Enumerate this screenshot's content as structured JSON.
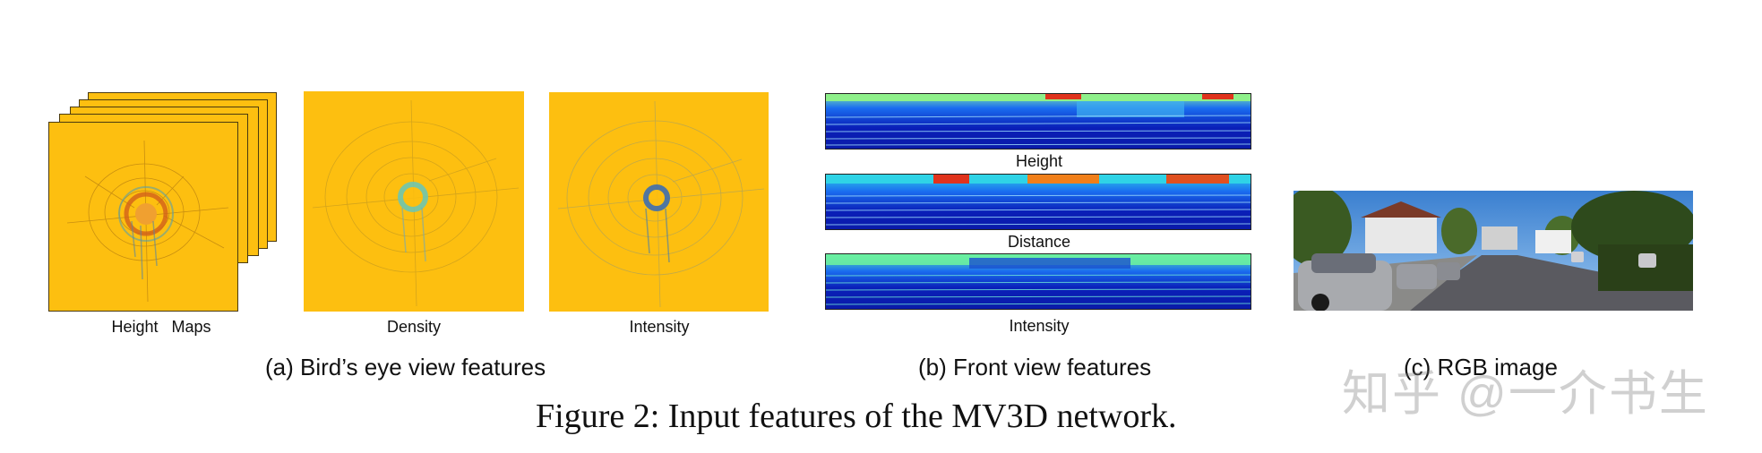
{
  "panel_a": {
    "height_maps_label": "Height   Maps",
    "density_label": "Density",
    "intensity_label": "Intensity",
    "caption": "(a) Bird’s eye view features"
  },
  "panel_b": {
    "height_label": "Height",
    "distance_label": "Distance",
    "intensity_label": "Intensity",
    "caption": "(b) Front view features"
  },
  "panel_c": {
    "caption": "(c) RGB image"
  },
  "figure_caption": "Figure 2: Input features of the MV3D network.",
  "watermark": "知乎 @一介书生",
  "colors": {
    "bev_background": "#fdbf10",
    "fv_deep_blue": "#0a1fb8",
    "fv_cyan": "#2fd3e6",
    "fv_green": "#8ef08a",
    "fv_red": "#e0331c"
  }
}
